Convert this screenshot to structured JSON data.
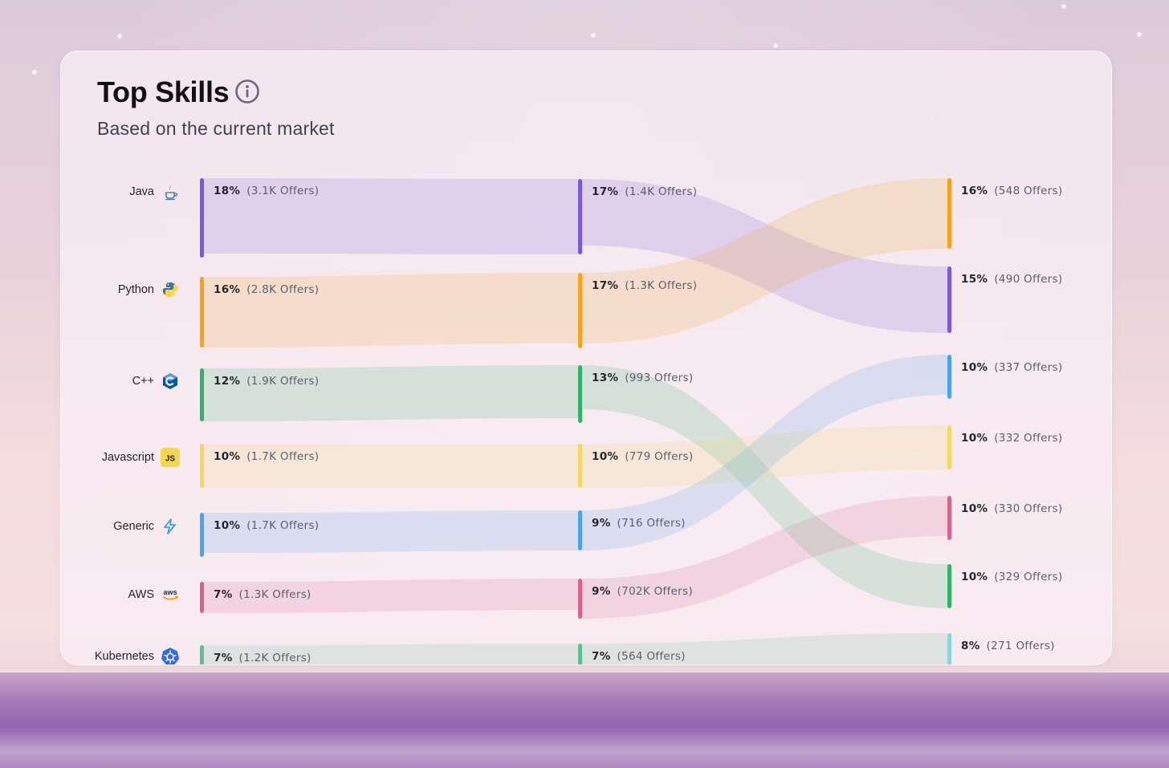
{
  "header": {
    "title": "Top Skills",
    "subtitle": "Based on the current market",
    "info_icon": "info-circle-icon"
  },
  "chart_data": {
    "type": "sankey",
    "columns": [
      {
        "nodes": [
          {
            "skill": "Java",
            "icon": "java-icon",
            "pct": "18%",
            "offers": "(3.1K Offers)",
            "value": 18,
            "color": "#7a5ad9"
          },
          {
            "skill": "Python",
            "icon": "python-icon",
            "pct": "16%",
            "offers": "(2.8K Offers)",
            "value": 16,
            "color": "#f5a21c"
          },
          {
            "skill": "C++",
            "icon": "cplusplus-icon",
            "pct": "12%",
            "offers": "(1.9K Offers)",
            "value": 12,
            "color": "#2fb36b"
          },
          {
            "skill": "Javascript",
            "icon": "javascript-icon",
            "pct": "10%",
            "offers": "(1.7K Offers)",
            "value": 10,
            "color": "#f4d660"
          },
          {
            "skill": "Generic",
            "icon": "generic-icon",
            "pct": "10%",
            "offers": "(1.7K Offers)",
            "value": 10,
            "color": "#4aa3ef"
          },
          {
            "skill": "AWS",
            "icon": "aws-icon",
            "pct": "7%",
            "offers": "(1.3K Offers)",
            "value": 7,
            "color": "#d8638f"
          },
          {
            "skill": "Kubernetes",
            "icon": "kubernetes-icon",
            "pct": "7%",
            "offers": "(1.2K Offers)",
            "value": 7,
            "color": "#5cbf95"
          }
        ]
      },
      {
        "nodes": [
          {
            "skill": "Java",
            "pct": "17%",
            "offers": "(1.4K Offers)",
            "value": 17,
            "color": "#7a5ad9"
          },
          {
            "skill": "Python",
            "pct": "17%",
            "offers": "(1.3K Offers)",
            "value": 17,
            "color": "#f5a21c"
          },
          {
            "skill": "C++",
            "pct": "13%",
            "offers": "(993 Offers)",
            "value": 13,
            "color": "#2fb36b"
          },
          {
            "skill": "Javascript",
            "pct": "10%",
            "offers": "(779 Offers)",
            "value": 10,
            "color": "#f4d660"
          },
          {
            "skill": "Generic",
            "pct": "9%",
            "offers": "(716 Offers)",
            "value": 9,
            "color": "#4aa3ef"
          },
          {
            "skill": "AWS",
            "pct": "9%",
            "offers": "(702K Offers)",
            "value": 9,
            "color": "#d8638f"
          },
          {
            "skill": "Kubernetes",
            "pct": "7%",
            "offers": "(564 Offers)",
            "value": 7,
            "color": "#5cbf95"
          }
        ]
      },
      {
        "nodes": [
          {
            "skill": "Python",
            "pct": "16%",
            "offers": "(548 Offers)",
            "value": 16,
            "color": "#f5a21c"
          },
          {
            "skill": "Java",
            "pct": "15%",
            "offers": "(490 Offers)",
            "value": 15,
            "color": "#7a5ad9"
          },
          {
            "skill": "Generic",
            "pct": "10%",
            "offers": "(337 Offers)",
            "value": 10,
            "color": "#4aa3ef"
          },
          {
            "skill": "Javascript",
            "pct": "10%",
            "offers": "(332 Offers)",
            "value": 10,
            "color": "#f4d660"
          },
          {
            "skill": "AWS",
            "pct": "10%",
            "offers": "(330 Offers)",
            "value": 10,
            "color": "#d8638f"
          },
          {
            "skill": "C++",
            "pct": "10%",
            "offers": "(329 Offers)",
            "value": 10,
            "color": "#2fb36b"
          },
          {
            "skill": "Kubernetes",
            "pct": "8%",
            "offers": "(271 Offers)",
            "value": 8,
            "color": "#8fd3dc"
          }
        ]
      }
    ]
  }
}
